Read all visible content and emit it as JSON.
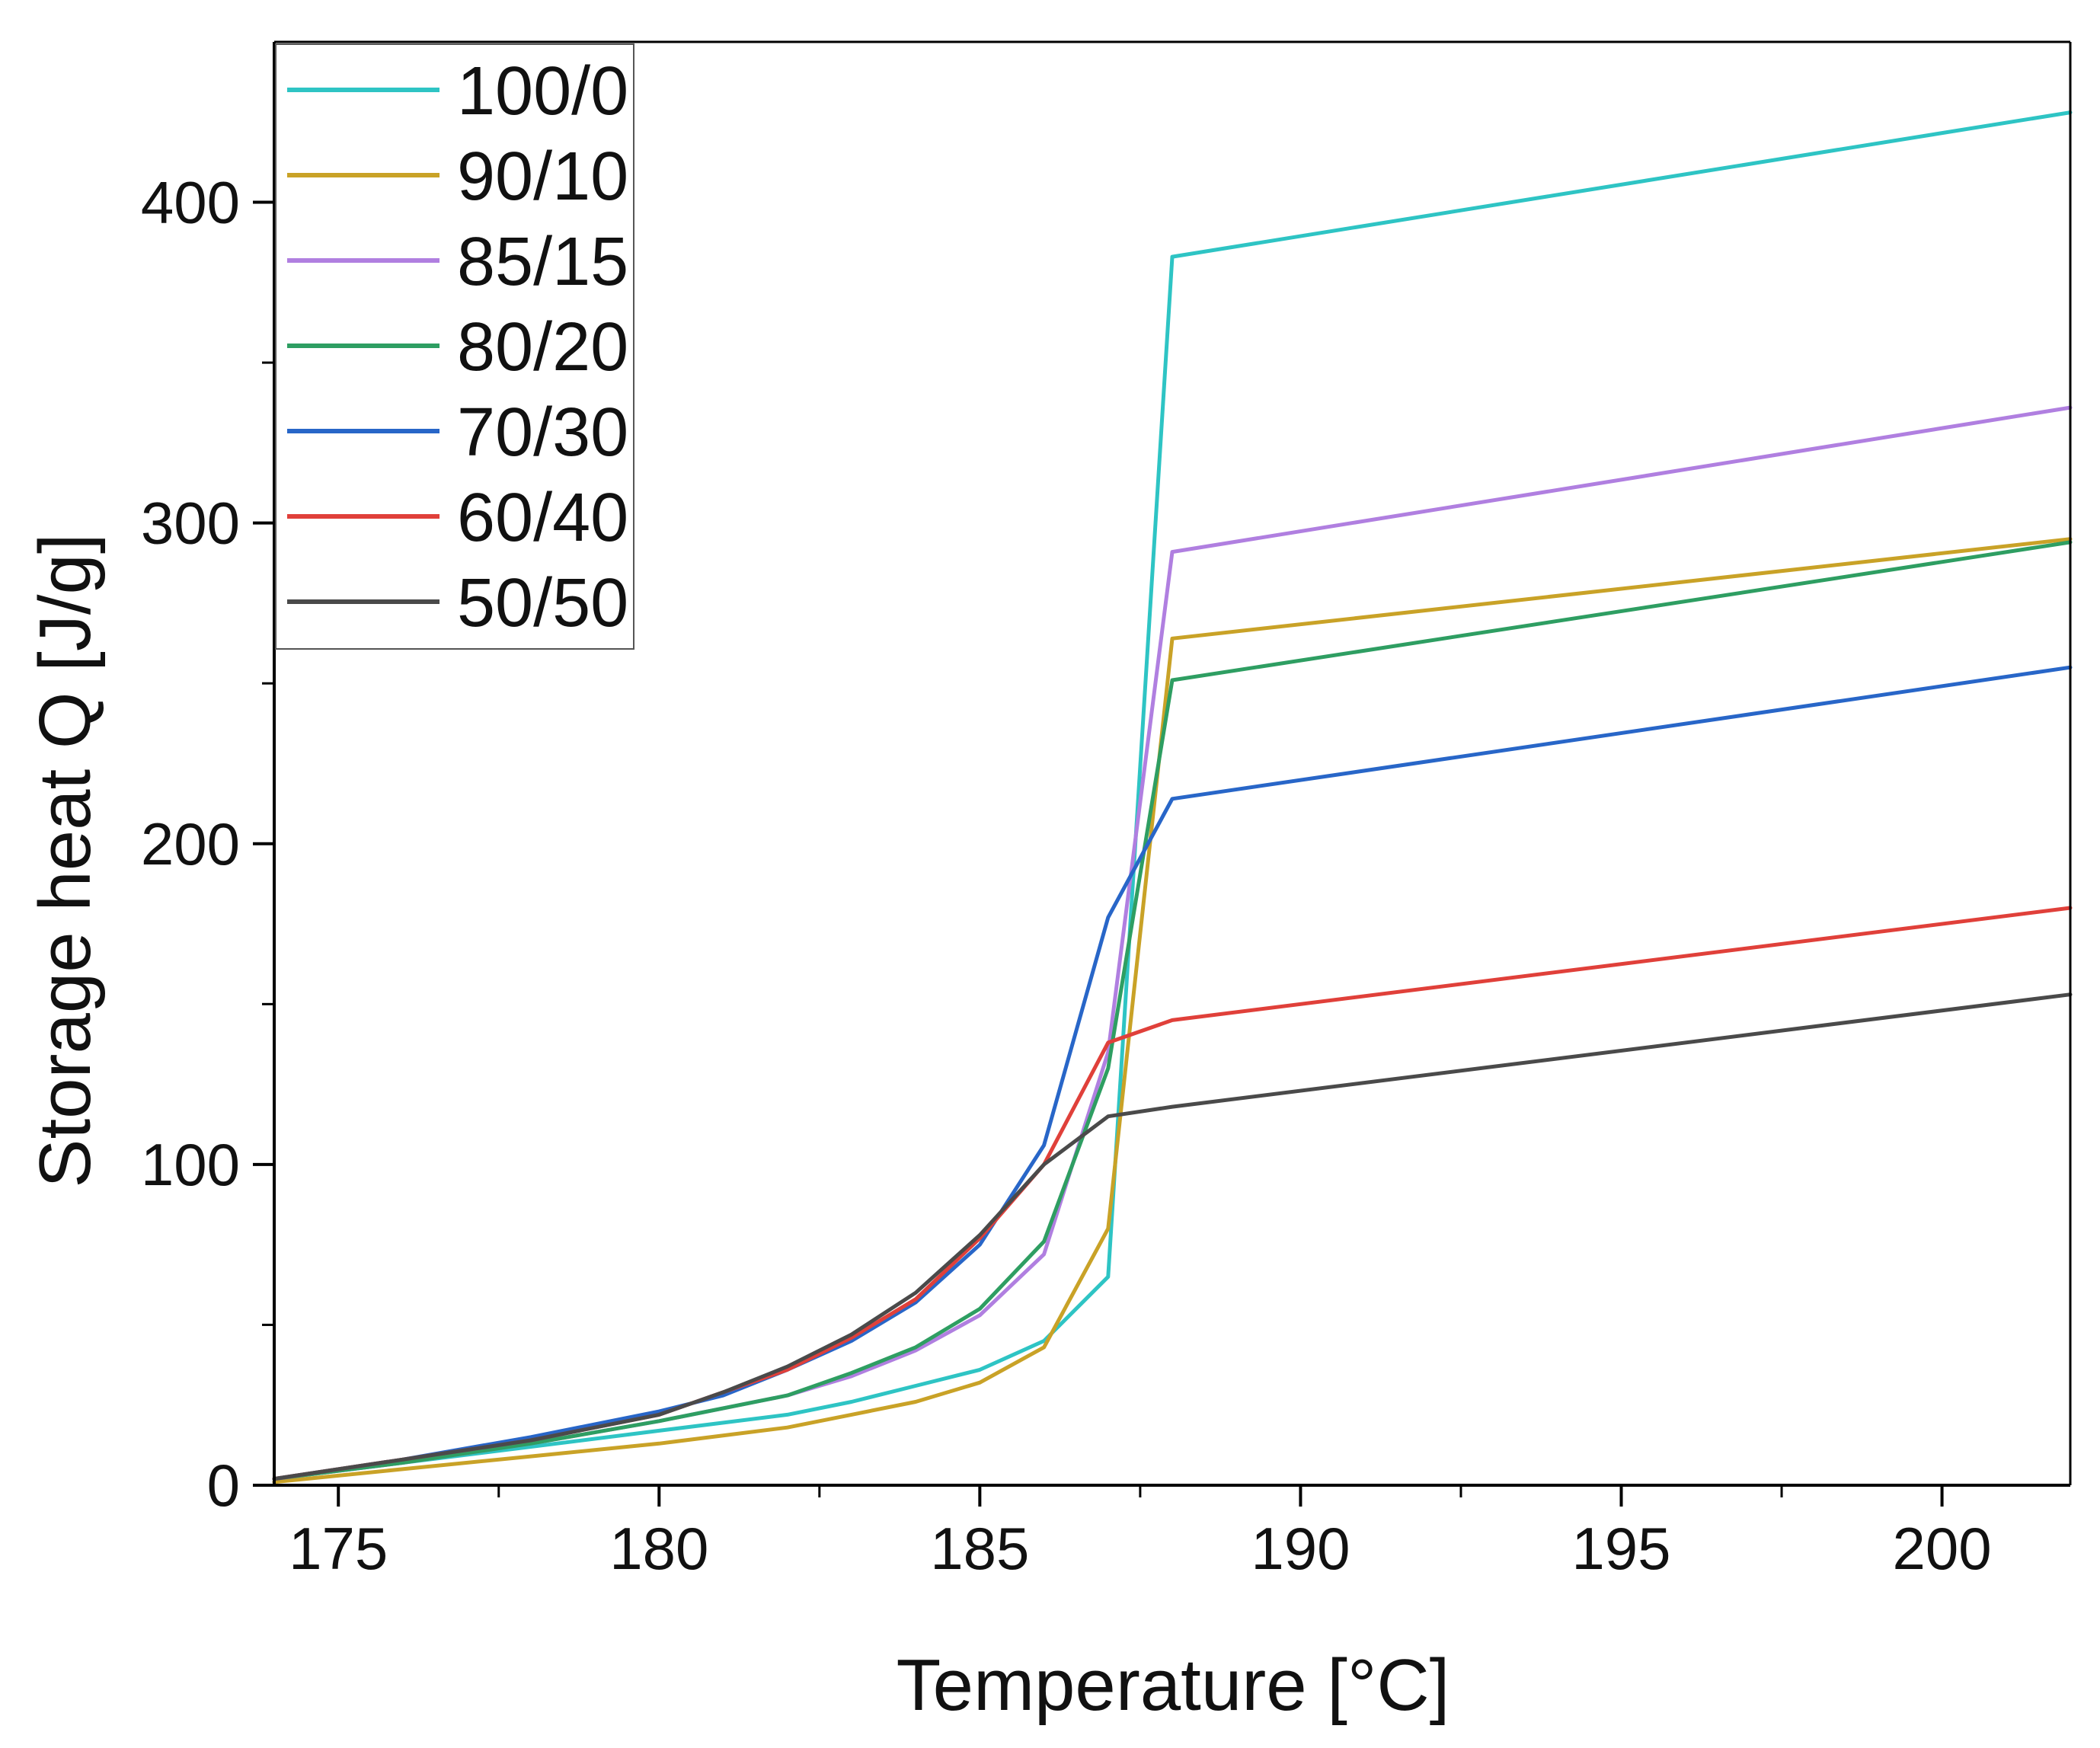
{
  "chart_data": {
    "type": "line",
    "title": "",
    "xlabel": "Temperature [°C]",
    "ylabel": "Storage heat Q [J/g]",
    "xlim": [
      174,
      202
    ],
    "ylim": [
      0,
      450
    ],
    "xticks": [
      175,
      180,
      185,
      190,
      195,
      200
    ],
    "yticks": [
      0,
      100,
      200,
      300,
      400
    ],
    "xtick_labels": [
      "175",
      "180",
      "185",
      "190",
      "195",
      "200"
    ],
    "ytick_labels": [
      "0",
      "100",
      "200",
      "300",
      "400"
    ],
    "grid": false,
    "legend_position": "top-left",
    "series": [
      {
        "name": "100/0",
        "color": "#2EC4C4",
        "x": [
          174,
          176,
          178,
          180,
          182,
          183,
          184,
          185,
          186,
          187,
          188,
          202
        ],
        "y": [
          2,
          7,
          12,
          17,
          22,
          26,
          31,
          36,
          45,
          65,
          383,
          428
        ]
      },
      {
        "name": "90/10",
        "color": "#C9A227",
        "x": [
          174,
          176,
          178,
          180,
          182,
          183,
          184,
          185,
          186,
          187,
          188,
          202
        ],
        "y": [
          1,
          5,
          9,
          13,
          18,
          22,
          26,
          32,
          43,
          80,
          264,
          295
        ]
      },
      {
        "name": "85/15",
        "color": "#B07FE0",
        "x": [
          174,
          176,
          178,
          180,
          182,
          183,
          184,
          185,
          186,
          187,
          188,
          202
        ],
        "y": [
          2,
          7,
          13,
          20,
          28,
          34,
          42,
          53,
          72,
          135,
          291,
          336
        ]
      },
      {
        "name": "80/20",
        "color": "#2E9E62",
        "x": [
          174,
          176,
          178,
          180,
          182,
          183,
          184,
          185,
          186,
          187,
          188,
          202
        ],
        "y": [
          2,
          7,
          13,
          20,
          28,
          35,
          43,
          55,
          76,
          130,
          251,
          294
        ]
      },
      {
        "name": "70/30",
        "color": "#2866C8",
        "x": [
          174,
          176,
          178,
          180,
          181,
          182,
          183,
          184,
          185,
          186,
          187,
          188,
          202
        ],
        "y": [
          2,
          8,
          15,
          23,
          28,
          36,
          45,
          57,
          75,
          106,
          177,
          214,
          255
        ]
      },
      {
        "name": "60/40",
        "color": "#E0403A",
        "x": [
          174,
          176,
          178,
          180,
          181,
          182,
          183,
          184,
          185,
          186,
          187,
          188,
          202
        ],
        "y": [
          2,
          8,
          14,
          22,
          29,
          36,
          46,
          58,
          77,
          100,
          138,
          145,
          180
        ]
      },
      {
        "name": "50/50",
        "color": "#4A4A4A",
        "x": [
          174,
          176,
          178,
          180,
          181,
          182,
          183,
          184,
          185,
          186,
          187,
          188,
          202
        ],
        "y": [
          2,
          8,
          14,
          22,
          29,
          37,
          47,
          60,
          78,
          100,
          115,
          118,
          153
        ]
      }
    ]
  }
}
